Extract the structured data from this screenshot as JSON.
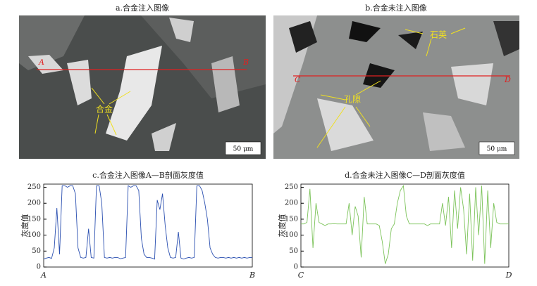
{
  "panels": [
    {
      "title": "a.合金注入图像",
      "start_label": "A",
      "end_label": "B",
      "annotation": "合金",
      "scale_bar": "50 μm"
    },
    {
      "title": "b.合金未注入图像",
      "start_label": "C",
      "end_label": "D",
      "annotations": [
        "石英",
        "孔隙"
      ],
      "scale_bar": "50 μm"
    }
  ],
  "chart_data": [
    {
      "type": "line",
      "title": "c.合金注入图像A—B剖面灰度值",
      "y_label": "灰度值",
      "x_start_label": "A",
      "x_end_label": "B",
      "color": "#2a4fb0",
      "values": [
        25,
        28,
        30,
        27,
        60,
        185,
        40,
        255,
        255,
        250,
        255,
        255,
        230,
        60,
        30,
        28,
        30,
        120,
        30,
        28,
        255,
        255,
        200,
        30,
        28,
        30,
        28,
        30,
        30,
        26,
        28,
        30,
        255,
        250,
        255,
        255,
        240,
        90,
        40,
        30,
        30,
        28,
        25,
        210,
        180,
        230,
        130,
        60,
        30,
        28,
        30,
        110,
        28,
        25,
        28,
        30,
        28,
        30,
        255,
        255,
        240,
        200,
        150,
        60,
        40,
        30,
        28,
        30,
        30,
        28,
        30,
        28,
        30,
        28,
        30,
        28,
        30,
        28,
        30,
        30
      ],
      "ylim": [
        0,
        260
      ],
      "yticks": [
        0,
        50,
        100,
        150,
        200,
        250
      ]
    },
    {
      "type": "line",
      "title": "d.合金未注入图像C—D剖面灰度值",
      "y_label": "灰度值",
      "x_start_label": "C",
      "x_end_label": "D",
      "color": "#7cc35a",
      "values": [
        135,
        135,
        140,
        245,
        60,
        200,
        140,
        135,
        130,
        135,
        135,
        136,
        135,
        135,
        135,
        135,
        200,
        100,
        190,
        160,
        30,
        220,
        135,
        135,
        135,
        135,
        130,
        80,
        10,
        40,
        120,
        135,
        200,
        240,
        255,
        160,
        135,
        135,
        135,
        135,
        135,
        135,
        130,
        135,
        135,
        135,
        135,
        200,
        130,
        220,
        60,
        240,
        120,
        250,
        180,
        40,
        230,
        20,
        250,
        100,
        255,
        10,
        240,
        60,
        200,
        140,
        135,
        135,
        135,
        135
      ],
      "ylim": [
        0,
        260
      ],
      "yticks": [
        0,
        50,
        100,
        150,
        200,
        250
      ]
    }
  ]
}
